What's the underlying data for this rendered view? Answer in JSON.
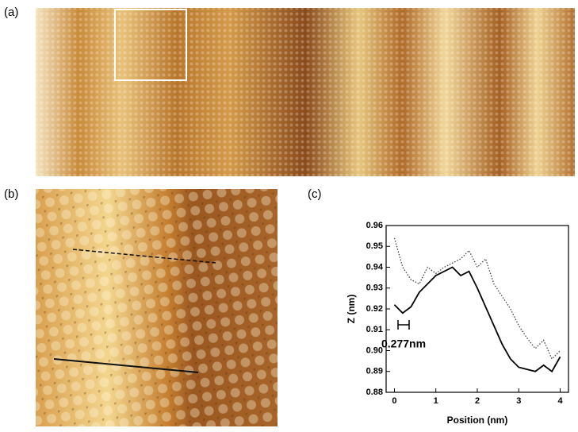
{
  "figure_labels": [
    "(a)",
    "(b)",
    "(c)"
  ],
  "chart_data": {
    "type": "line",
    "x_label": "Position (nm)",
    "y_label": "Z (nm)",
    "annotation": "0.277nm",
    "x": [
      0,
      0.2,
      0.4,
      0.6,
      0.8,
      1.0,
      1.2,
      1.4,
      1.6,
      1.8,
      2.0,
      2.2,
      2.4,
      2.6,
      2.8,
      3.0,
      3.2,
      3.4,
      3.6,
      3.8,
      4.0
    ],
    "series": [
      {
        "color": "#000000",
        "style": "solid",
        "values": [
          0.922,
          0.918,
          0.921,
          0.928,
          0.932,
          0.936,
          0.938,
          0.94,
          0.936,
          0.938,
          0.93,
          0.921,
          0.912,
          0.903,
          0.896,
          0.892,
          0.891,
          0.89,
          0.893,
          0.89,
          0.897
        ]
      },
      {
        "color": "#444444",
        "style": "dotted",
        "values": [
          0.954,
          0.94,
          0.934,
          0.932,
          0.94,
          0.937,
          0.94,
          0.942,
          0.944,
          0.948,
          0.94,
          0.944,
          0.932,
          0.926,
          0.92,
          0.912,
          0.906,
          0.901,
          0.905,
          0.896,
          0.9
        ]
      }
    ],
    "xlim": [
      -0.2,
      4.2
    ],
    "xticks": [
      0,
      1,
      2,
      3,
      4
    ],
    "ylim": [
      0.88,
      0.96
    ],
    "yticks": [
      0.88,
      0.89,
      {
        "value": 0.9,
        "label": "0.90"
      },
      0.91,
      0.92,
      0.93,
      0.94,
      0.95,
      0.96
    ]
  }
}
